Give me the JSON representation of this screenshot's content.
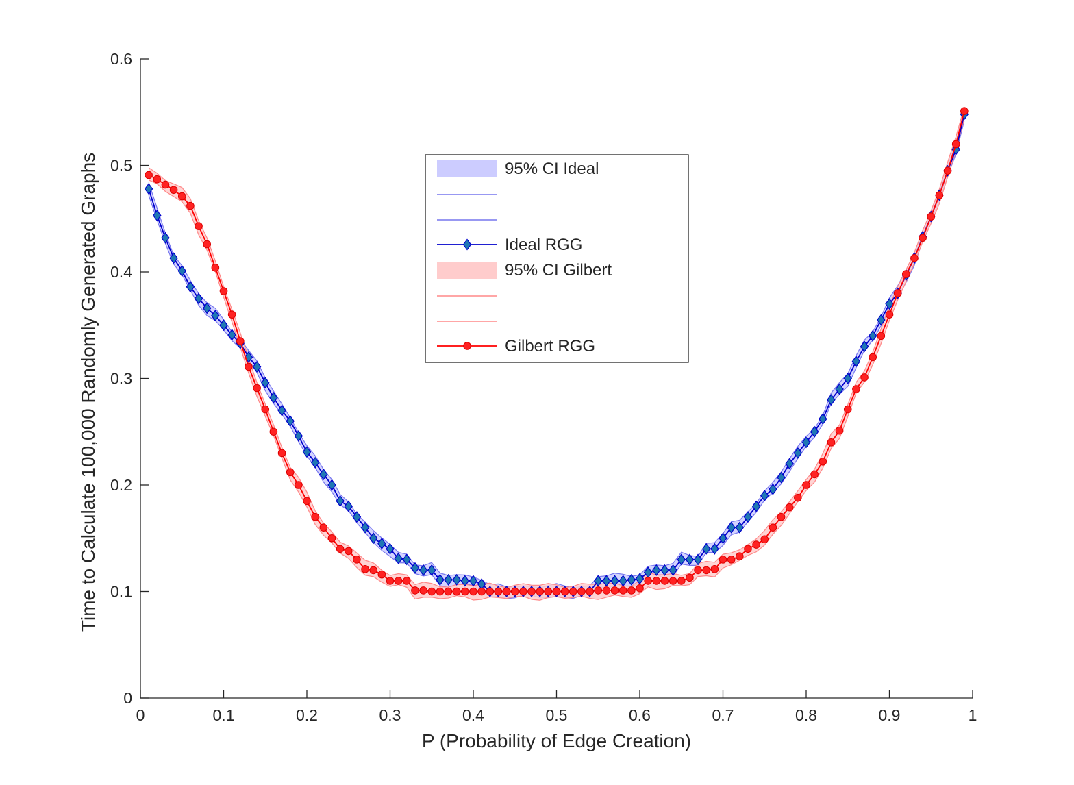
{
  "chart_data": {
    "type": "line",
    "xlabel": "P (Probability of Edge Creation)",
    "ylabel": "Time to Calculate 100,000 Randomly Generated Graphs",
    "xlim": [
      0,
      1
    ],
    "ylim": [
      0,
      0.6
    ],
    "xticks": [
      "0",
      "0.1",
      "0.2",
      "0.3",
      "0.4",
      "0.5",
      "0.6",
      "0.7",
      "0.8",
      "0.9",
      "1"
    ],
    "yticks": [
      "0",
      "0.1",
      "0.2",
      "0.3",
      "0.4",
      "0.5",
      "0.6"
    ],
    "grid": false,
    "legend": {
      "placement": "upper-center",
      "entries": [
        "95% CI Ideal",
        "",
        "",
        "Ideal RGG",
        "95% CI Gilbert",
        "",
        "",
        "Gilbert RGG"
      ]
    },
    "colors": {
      "ideal_line": "#0000cc",
      "ideal_marker": "#1f77b4",
      "ideal_band": "#ccccff",
      "ideal_bound": "#7777ee",
      "gilbert_line": "#ff0000",
      "gilbert_marker": "#ff2222",
      "gilbert_band": "#ffcccc",
      "gilbert_bound": "#ff8888",
      "axis": "#262626"
    },
    "x": [
      0.01,
      0.02,
      0.03,
      0.04,
      0.05,
      0.06,
      0.07,
      0.08,
      0.09,
      0.1,
      0.11,
      0.12,
      0.13,
      0.14,
      0.15,
      0.16,
      0.17,
      0.18,
      0.19,
      0.2,
      0.21,
      0.22,
      0.23,
      0.24,
      0.25,
      0.26,
      0.27,
      0.28,
      0.29,
      0.3,
      0.31,
      0.32,
      0.33,
      0.34,
      0.35,
      0.36,
      0.37,
      0.38,
      0.39,
      0.4,
      0.41,
      0.42,
      0.43,
      0.44,
      0.45,
      0.46,
      0.47,
      0.48,
      0.49,
      0.5,
      0.51,
      0.52,
      0.53,
      0.54,
      0.55,
      0.56,
      0.57,
      0.58,
      0.59,
      0.6,
      0.61,
      0.62,
      0.63,
      0.64,
      0.65,
      0.66,
      0.67,
      0.68,
      0.69,
      0.7,
      0.71,
      0.72,
      0.73,
      0.74,
      0.75,
      0.76,
      0.77,
      0.78,
      0.79,
      0.8,
      0.81,
      0.82,
      0.83,
      0.84,
      0.85,
      0.86,
      0.87,
      0.88,
      0.89,
      0.9,
      0.91,
      0.92,
      0.93,
      0.94,
      0.95,
      0.96,
      0.97,
      0.98,
      0.99
    ],
    "series": [
      {
        "name": "Ideal RGG",
        "marker": "diamond",
        "ci_name": "95% CI Ideal",
        "ci_halfwidth": 0.005,
        "values": [
          0.478,
          0.453,
          0.432,
          0.413,
          0.401,
          0.386,
          0.375,
          0.366,
          0.359,
          0.35,
          0.341,
          0.333,
          0.32,
          0.311,
          0.296,
          0.282,
          0.27,
          0.26,
          0.246,
          0.231,
          0.221,
          0.21,
          0.2,
          0.185,
          0.18,
          0.17,
          0.16,
          0.15,
          0.145,
          0.14,
          0.131,
          0.13,
          0.122,
          0.12,
          0.12,
          0.111,
          0.111,
          0.111,
          0.11,
          0.11,
          0.107,
          0.1,
          0.1,
          0.1,
          0.1,
          0.1,
          0.1,
          0.1,
          0.1,
          0.1,
          0.1,
          0.1,
          0.1,
          0.1,
          0.11,
          0.11,
          0.11,
          0.11,
          0.111,
          0.112,
          0.118,
          0.12,
          0.12,
          0.12,
          0.13,
          0.13,
          0.13,
          0.14,
          0.14,
          0.15,
          0.16,
          0.16,
          0.17,
          0.18,
          0.19,
          0.196,
          0.207,
          0.22,
          0.23,
          0.24,
          0.25,
          0.262,
          0.28,
          0.29,
          0.3,
          0.316,
          0.33,
          0.34,
          0.355,
          0.37,
          0.38,
          0.397,
          0.413,
          0.433,
          0.452,
          0.472,
          0.495,
          0.515,
          0.548
        ]
      },
      {
        "name": "Gilbert RGG",
        "marker": "circle",
        "ci_name": "95% CI Gilbert",
        "ci_halfwidth": 0.006,
        "values": [
          0.491,
          0.487,
          0.482,
          0.477,
          0.471,
          0.462,
          0.443,
          0.426,
          0.404,
          0.382,
          0.36,
          0.335,
          0.311,
          0.291,
          0.271,
          0.25,
          0.23,
          0.212,
          0.2,
          0.185,
          0.17,
          0.16,
          0.15,
          0.14,
          0.138,
          0.13,
          0.121,
          0.12,
          0.116,
          0.11,
          0.11,
          0.11,
          0.101,
          0.101,
          0.1,
          0.1,
          0.1,
          0.1,
          0.1,
          0.1,
          0.1,
          0.1,
          0.1,
          0.1,
          0.1,
          0.1,
          0.1,
          0.1,
          0.1,
          0.1,
          0.1,
          0.1,
          0.1,
          0.1,
          0.101,
          0.101,
          0.101,
          0.101,
          0.101,
          0.103,
          0.11,
          0.11,
          0.11,
          0.11,
          0.11,
          0.113,
          0.12,
          0.12,
          0.121,
          0.13,
          0.13,
          0.133,
          0.14,
          0.144,
          0.149,
          0.16,
          0.17,
          0.179,
          0.188,
          0.2,
          0.21,
          0.222,
          0.24,
          0.251,
          0.271,
          0.29,
          0.301,
          0.32,
          0.34,
          0.36,
          0.38,
          0.398,
          0.413,
          0.432,
          0.452,
          0.472,
          0.495,
          0.52,
          0.551
        ]
      }
    ]
  }
}
